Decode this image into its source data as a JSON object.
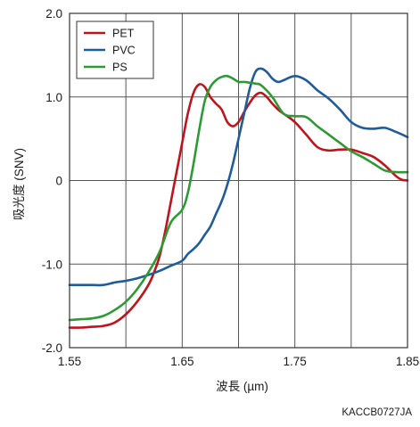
{
  "chart_data": {
    "type": "line",
    "xlabel": "波長 (µm)",
    "ylabel": "吸光度 (SNV)",
    "xlim": [
      1.55,
      1.85
    ],
    "ylim": [
      -2.0,
      2.0
    ],
    "x_ticks": [
      1.55,
      1.65,
      1.75,
      1.85
    ],
    "x_tick_labels": [
      "1.55",
      "1.65",
      "1.75",
      "1.85"
    ],
    "y_ticks": [
      -2.0,
      -1.0,
      0,
      1.0,
      2.0
    ],
    "y_tick_labels": [
      "-2.0",
      "-1.0",
      "0",
      "1.0",
      "2.0"
    ],
    "x_gridlines": [
      1.6,
      1.65,
      1.7,
      1.75,
      1.8
    ],
    "y_gridlines": [
      -1.0,
      0,
      1.0
    ],
    "legend_position": "top-left",
    "series": [
      {
        "name": "PET",
        "color": "#c0141c",
        "x": [
          1.55,
          1.56,
          1.57,
          1.58,
          1.59,
          1.6,
          1.61,
          1.62,
          1.625,
          1.63,
          1.635,
          1.64,
          1.645,
          1.65,
          1.655,
          1.66,
          1.665,
          1.67,
          1.675,
          1.68,
          1.685,
          1.69,
          1.695,
          1.7,
          1.705,
          1.71,
          1.715,
          1.72,
          1.725,
          1.73,
          1.735,
          1.74,
          1.75,
          1.76,
          1.77,
          1.78,
          1.79,
          1.8,
          1.81,
          1.82,
          1.83,
          1.84,
          1.845,
          1.85
        ],
        "y": [
          -1.76,
          -1.76,
          -1.75,
          -1.74,
          -1.7,
          -1.6,
          -1.45,
          -1.25,
          -1.1,
          -0.9,
          -0.6,
          -0.25,
          0.1,
          0.45,
          0.8,
          1.05,
          1.15,
          1.12,
          1.0,
          0.92,
          0.85,
          0.7,
          0.65,
          0.7,
          0.82,
          0.93,
          1.02,
          1.05,
          1.0,
          0.92,
          0.85,
          0.8,
          0.7,
          0.55,
          0.4,
          0.36,
          0.37,
          0.37,
          0.33,
          0.28,
          0.18,
          0.05,
          0.01,
          0.0
        ]
      },
      {
        "name": "PVC",
        "color": "#1f5c99",
        "x": [
          1.55,
          1.56,
          1.57,
          1.58,
          1.59,
          1.6,
          1.61,
          1.62,
          1.63,
          1.64,
          1.65,
          1.655,
          1.66,
          1.665,
          1.67,
          1.675,
          1.68,
          1.685,
          1.69,
          1.695,
          1.7,
          1.705,
          1.71,
          1.715,
          1.72,
          1.725,
          1.73,
          1.735,
          1.74,
          1.75,
          1.76,
          1.77,
          1.78,
          1.79,
          1.8,
          1.81,
          1.82,
          1.83,
          1.84,
          1.85
        ],
        "y": [
          -1.25,
          -1.25,
          -1.25,
          -1.25,
          -1.22,
          -1.2,
          -1.17,
          -1.13,
          -1.08,
          -1.02,
          -0.96,
          -0.88,
          -0.82,
          -0.75,
          -0.65,
          -0.55,
          -0.4,
          -0.25,
          -0.05,
          0.2,
          0.5,
          0.8,
          1.1,
          1.3,
          1.34,
          1.3,
          1.22,
          1.18,
          1.2,
          1.25,
          1.2,
          1.08,
          0.98,
          0.85,
          0.7,
          0.63,
          0.62,
          0.63,
          0.58,
          0.52
        ]
      },
      {
        "name": "PS",
        "color": "#2e9a35",
        "x": [
          1.55,
          1.56,
          1.57,
          1.58,
          1.59,
          1.6,
          1.61,
          1.62,
          1.63,
          1.64,
          1.65,
          1.655,
          1.66,
          1.665,
          1.67,
          1.675,
          1.68,
          1.685,
          1.69,
          1.695,
          1.7,
          1.705,
          1.71,
          1.715,
          1.72,
          1.73,
          1.74,
          1.75,
          1.76,
          1.77,
          1.78,
          1.79,
          1.8,
          1.81,
          1.82,
          1.83,
          1.84,
          1.85
        ],
        "y": [
          -1.67,
          -1.66,
          -1.65,
          -1.62,
          -1.55,
          -1.45,
          -1.3,
          -1.1,
          -0.85,
          -0.5,
          -0.35,
          -0.15,
          0.2,
          0.6,
          0.95,
          1.12,
          1.2,
          1.24,
          1.25,
          1.22,
          1.18,
          1.18,
          1.17,
          1.16,
          1.14,
          1.0,
          0.8,
          0.77,
          0.76,
          0.65,
          0.55,
          0.45,
          0.35,
          0.28,
          0.2,
          0.12,
          0.1,
          0.1
        ]
      }
    ]
  },
  "figure_code": "KACCB0727JA"
}
